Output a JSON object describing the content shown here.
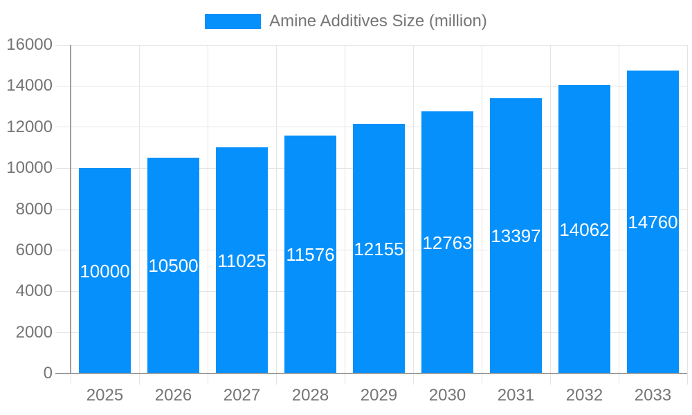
{
  "chart_data": {
    "type": "bar",
    "title": "Amine Additives Size (million)",
    "legend": {
      "label": "Amine Additives Size (million)",
      "position": "top-center"
    },
    "categories": [
      "2025",
      "2026",
      "2027",
      "2028",
      "2029",
      "2030",
      "2031",
      "2032",
      "2033"
    ],
    "values": [
      10000,
      10500,
      11025,
      11576,
      12155,
      12763,
      13397,
      14062,
      14760
    ],
    "value_labels": [
      "10000",
      "10500",
      "11025",
      "11576",
      "12155",
      "12763",
      "13397",
      "14062",
      "14760"
    ],
    "value_label_position": "inside-center",
    "xlabel": "",
    "ylabel": "",
    "ylim": [
      0,
      16000
    ],
    "ytick_step": 2000,
    "ytick_labels": [
      "0",
      "2000",
      "4000",
      "6000",
      "8000",
      "10000",
      "12000",
      "14000",
      "16000"
    ],
    "grid": "on",
    "colors": {
      "bar": "#0590fb",
      "grid": "#e4e4e4",
      "axis": "#9e9e9e",
      "tick_text": "#757575",
      "value_label_text": "#ffffff",
      "background": "#ffffff"
    }
  }
}
